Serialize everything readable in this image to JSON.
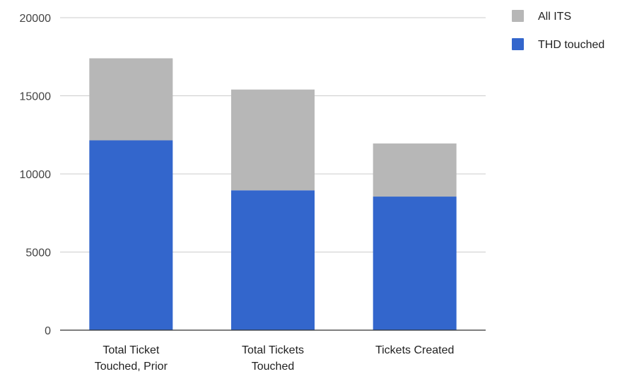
{
  "chart_data": {
    "type": "bar",
    "stacked": true,
    "categories": [
      "Total Ticket Touched, Prior",
      "Total Tickets Touched",
      "Tickets Created"
    ],
    "category_lines": [
      [
        "Total Ticket",
        "Touched, Prior"
      ],
      [
        "Total Tickets",
        "Touched"
      ],
      [
        "Tickets Created"
      ]
    ],
    "series": [
      {
        "name": "THD touched",
        "values": [
          12150,
          8950,
          8550
        ],
        "color": "#3366cc"
      },
      {
        "name": "All ITS",
        "values": [
          5250,
          6450,
          3400
        ],
        "color": "#b7b7b7"
      }
    ],
    "title": "",
    "xlabel": "",
    "ylabel": "",
    "ylim": [
      0,
      20000
    ],
    "yticks": [
      0,
      5000,
      10000,
      15000,
      20000
    ],
    "grid": true,
    "legend_position": "right",
    "legend": [
      {
        "name": "All ITS",
        "color": "#b7b7b7"
      },
      {
        "name": "THD touched",
        "color": "#3366cc"
      }
    ]
  }
}
